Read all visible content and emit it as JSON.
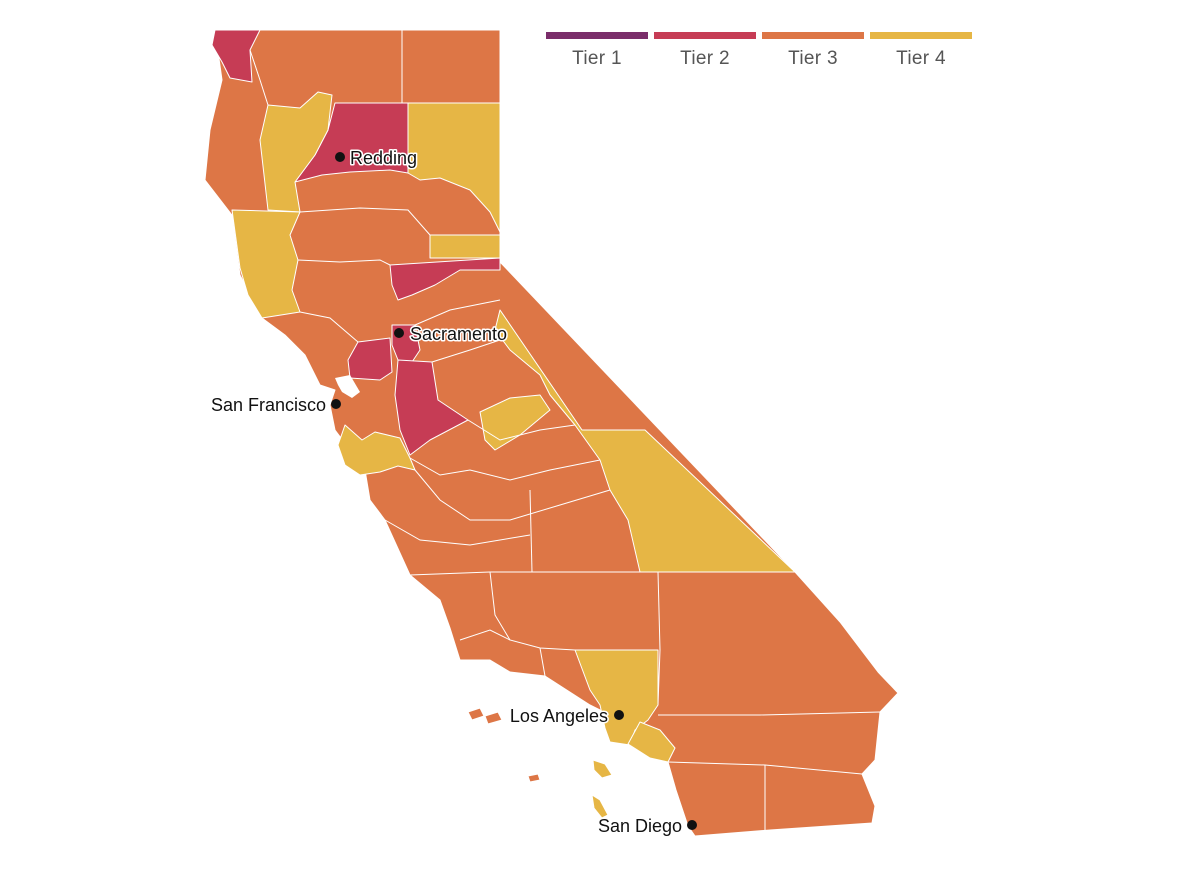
{
  "legend": {
    "items": [
      {
        "label": "Tier 1",
        "color": "#7a2d6a"
      },
      {
        "label": "Tier 2",
        "color": "#c63c55"
      },
      {
        "label": "Tier 3",
        "color": "#dd7646"
      },
      {
        "label": "Tier 4",
        "color": "#e6b645"
      }
    ]
  },
  "cities": [
    {
      "name": "Redding",
      "label_side": "right"
    },
    {
      "name": "Sacramento",
      "label_side": "right"
    },
    {
      "name": "San Francisco",
      "label_side": "left"
    },
    {
      "name": "Los Angeles",
      "label_side": "left"
    },
    {
      "name": "San Diego",
      "label_side": "left"
    }
  ]
}
